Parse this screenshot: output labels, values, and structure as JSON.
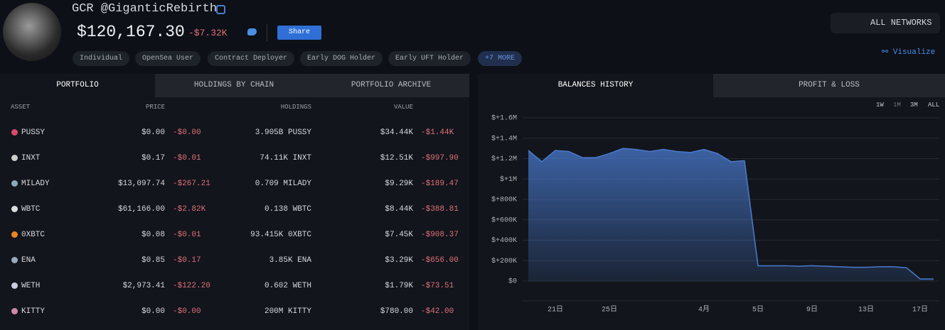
{
  "header": {
    "name": "GCR @GiganticRebirth",
    "balance": "$120,167.30",
    "change": "-$7.32K",
    "share": "Share",
    "tags": [
      "Individual",
      "OpenSea User",
      "Contract Deployer",
      "Early DOG Holder",
      "Early UFT Holder"
    ],
    "more": "+7 MORE"
  },
  "networks": "ALL NETWORKS",
  "visualize": "Visualize",
  "tabs": [
    "PORTFOLIO",
    "HOLDINGS BY CHAIN",
    "PORTFOLIO ARCHIVE"
  ],
  "table": {
    "columns": [
      "ASSET",
      "PRICE",
      "HOLDINGS",
      "VALUE"
    ],
    "rows": [
      [
        "PUSSY",
        "$0.00",
        "-$0.00",
        "3.905B PUSSY",
        "$34.44K",
        "-$1.44K"
      ],
      [
        "INXT",
        "$0.17",
        "-$0.01",
        "74.11K INXT",
        "$12.51K",
        "-$997.90"
      ],
      [
        "MILADY",
        "$13,097.74",
        "-$267.21",
        "0.709 MILADY",
        "$9.29K",
        "-$189.47"
      ],
      [
        "WBTC",
        "$61,166.00",
        "-$2.82K",
        "0.138 WBTC",
        "$8.44K",
        "-$388.81"
      ],
      [
        "0XBTC",
        "$0.08",
        "-$0.01",
        "93.415K 0XBTC",
        "$7.45K",
        "-$908.37"
      ],
      [
        "ENA",
        "$0.85",
        "-$0.17",
        "3.85K ENA",
        "$3.29K",
        "-$656.00"
      ],
      [
        "WETH",
        "$2,973.41",
        "-$122.20",
        "0.602 WETH",
        "$1.79K",
        "-$73.51"
      ],
      [
        "KITTY",
        "$0.00",
        "-$0.00",
        "200M KITTY",
        "$780.00",
        "-$42.00"
      ]
    ]
  },
  "chart_tabs": [
    "BALANCES HISTORY",
    "PROFIT & LOSS"
  ],
  "ranges": [
    "1W",
    "1M",
    "3M",
    "ALL"
  ],
  "chart_data": {
    "type": "area",
    "color": "#4a7bd0",
    "categories": [
      null,
      null,
      "21日",
      null,
      null,
      null,
      "25日",
      null,
      null,
      null,
      null,
      null,
      null,
      "4月",
      null,
      null,
      null,
      "5日",
      null,
      null,
      null,
      "9日",
      null,
      null,
      null,
      "13日",
      null,
      null,
      null,
      "17日",
      null
    ],
    "values": [
      1280000,
      1170000,
      1280000,
      1270000,
      1210000,
      1210000,
      1250000,
      1300000,
      1290000,
      1270000,
      1290000,
      1270000,
      1260000,
      1290000,
      1250000,
      1170000,
      1180000,
      150000,
      150000,
      150000,
      145000,
      150000,
      145000,
      140000,
      135000,
      135000,
      140000,
      140000,
      130000,
      20000,
      20000
    ],
    "ylim": [
      0,
      1600000
    ],
    "yticks": [
      {
        "value": 0,
        "label": "$0"
      },
      {
        "value": 200000,
        "label": "$+200K"
      },
      {
        "value": 400000,
        "label": "$+400K"
      },
      {
        "value": 600000,
        "label": "$+600K"
      },
      {
        "value": 800000,
        "label": "$+800K"
      },
      {
        "value": 1000000,
        "label": "$+1M"
      },
      {
        "value": 1200000,
        "label": "$+1.2M"
      },
      {
        "value": 1400000,
        "label": "$+1.4M"
      },
      {
        "value": 1600000,
        "label": "$+1.6M"
      }
    ],
    "grid": true
  }
}
